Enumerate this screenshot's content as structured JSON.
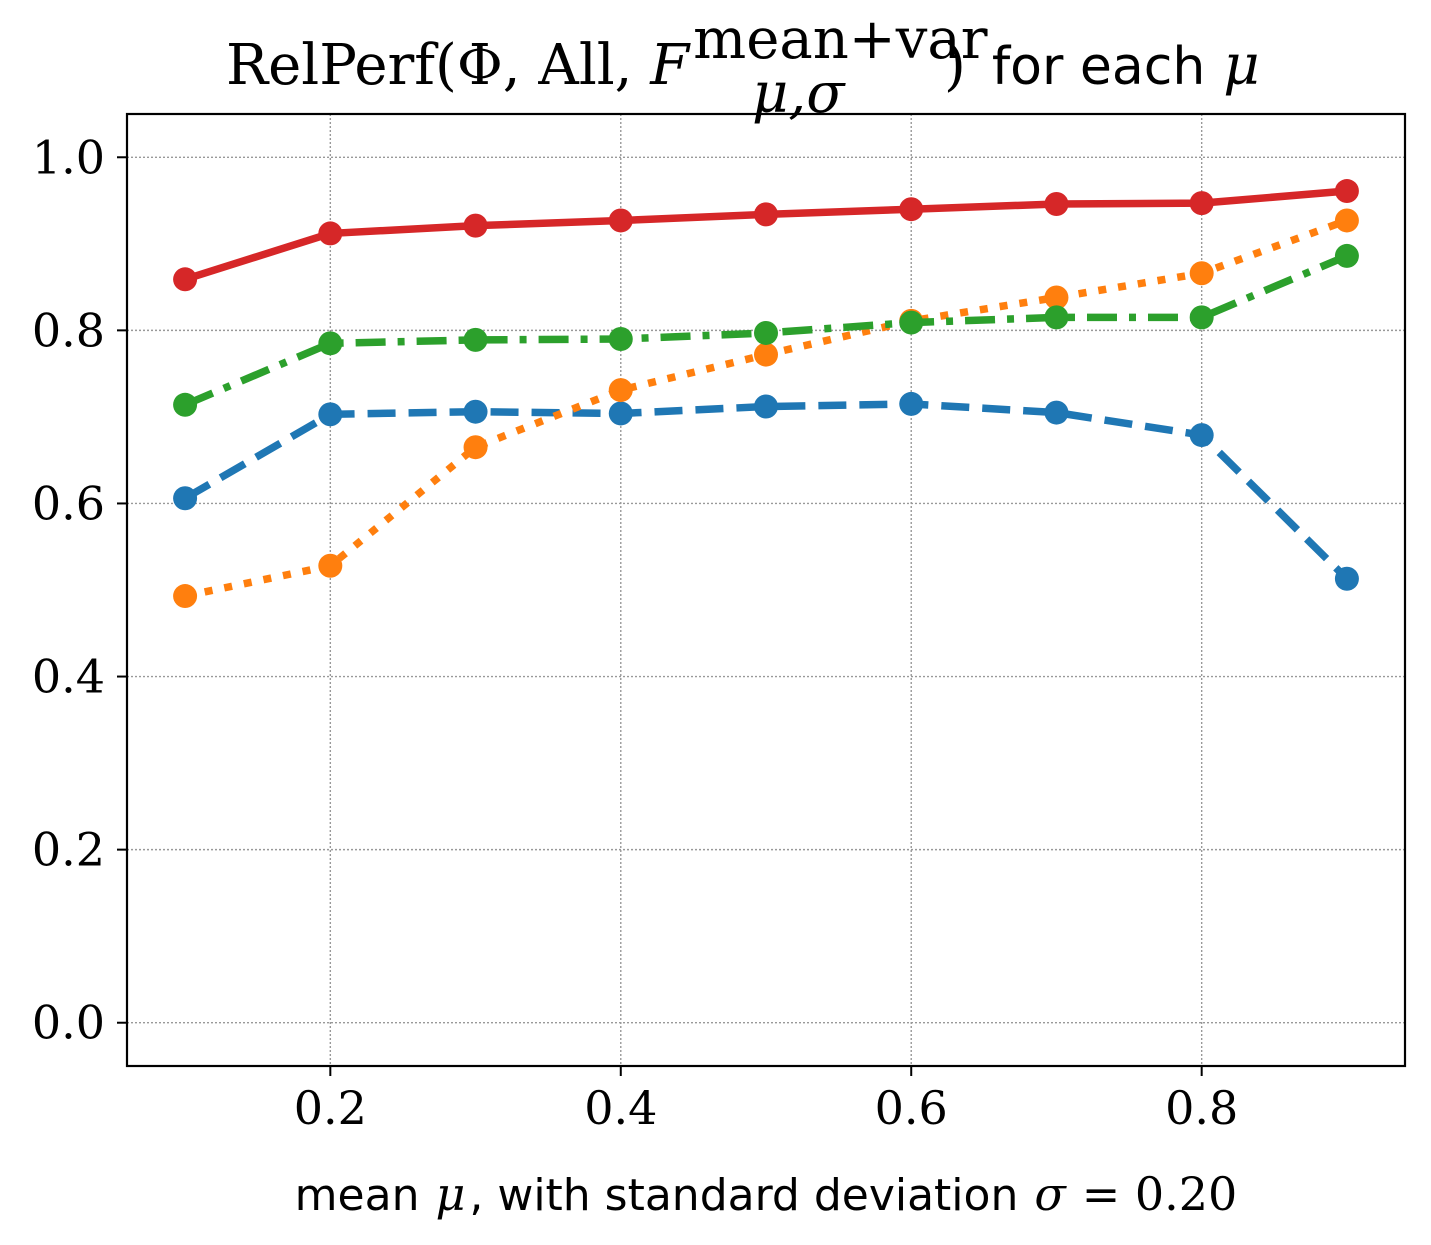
{
  "chart_data": {
    "type": "line",
    "title": {
      "main": "RelPerf(Φ, All, ",
      "symbol": "F",
      "superscript": "mean+var",
      "subscript": "μ,σ",
      "close": ")",
      "suffix": "for each",
      "mu": "μ"
    },
    "xlabel": {
      "prefix": "mean",
      "mu": "μ",
      "middle": ", with standard deviation",
      "sigma": "σ",
      "equals": "= 0.20"
    },
    "ylabel": "",
    "xlim": [
      0.06,
      0.94
    ],
    "ylim": [
      -0.05,
      1.05
    ],
    "xticks": [
      0.2,
      0.4,
      0.6,
      0.8
    ],
    "xtick_labels": [
      "0.2",
      "0.4",
      "0.6",
      "0.8"
    ],
    "yticks": [
      0.0,
      0.2,
      0.4,
      0.6,
      0.8,
      1.0
    ],
    "ytick_labels": [
      "0.0",
      "0.2",
      "0.4",
      "0.6",
      "0.8",
      "1.0"
    ],
    "grid": true,
    "x": [
      0.1,
      0.2,
      0.3,
      0.4,
      0.5,
      0.6,
      0.7,
      0.8,
      0.9
    ],
    "series": [
      {
        "name": "blue-dashed",
        "color": "#1f77b4",
        "linestyle": "dashed",
        "values": [
          0.606,
          0.703,
          0.706,
          0.704,
          0.712,
          0.715,
          0.705,
          0.679,
          0.513
        ]
      },
      {
        "name": "orange-dotted",
        "color": "#ff7f0e",
        "linestyle": "dotted",
        "values": [
          0.493,
          0.528,
          0.665,
          0.731,
          0.772,
          0.811,
          0.838,
          0.866,
          0.927
        ]
      },
      {
        "name": "green-dashdot",
        "color": "#2ca02c",
        "linestyle": "dashdot",
        "values": [
          0.714,
          0.785,
          0.789,
          0.79,
          0.797,
          0.809,
          0.815,
          0.815,
          0.886
        ]
      },
      {
        "name": "red-solid",
        "color": "#d62728",
        "linestyle": "solid",
        "values": [
          0.859,
          0.912,
          0.921,
          0.927,
          0.934,
          0.94,
          0.946,
          0.947,
          0.961
        ]
      }
    ]
  }
}
